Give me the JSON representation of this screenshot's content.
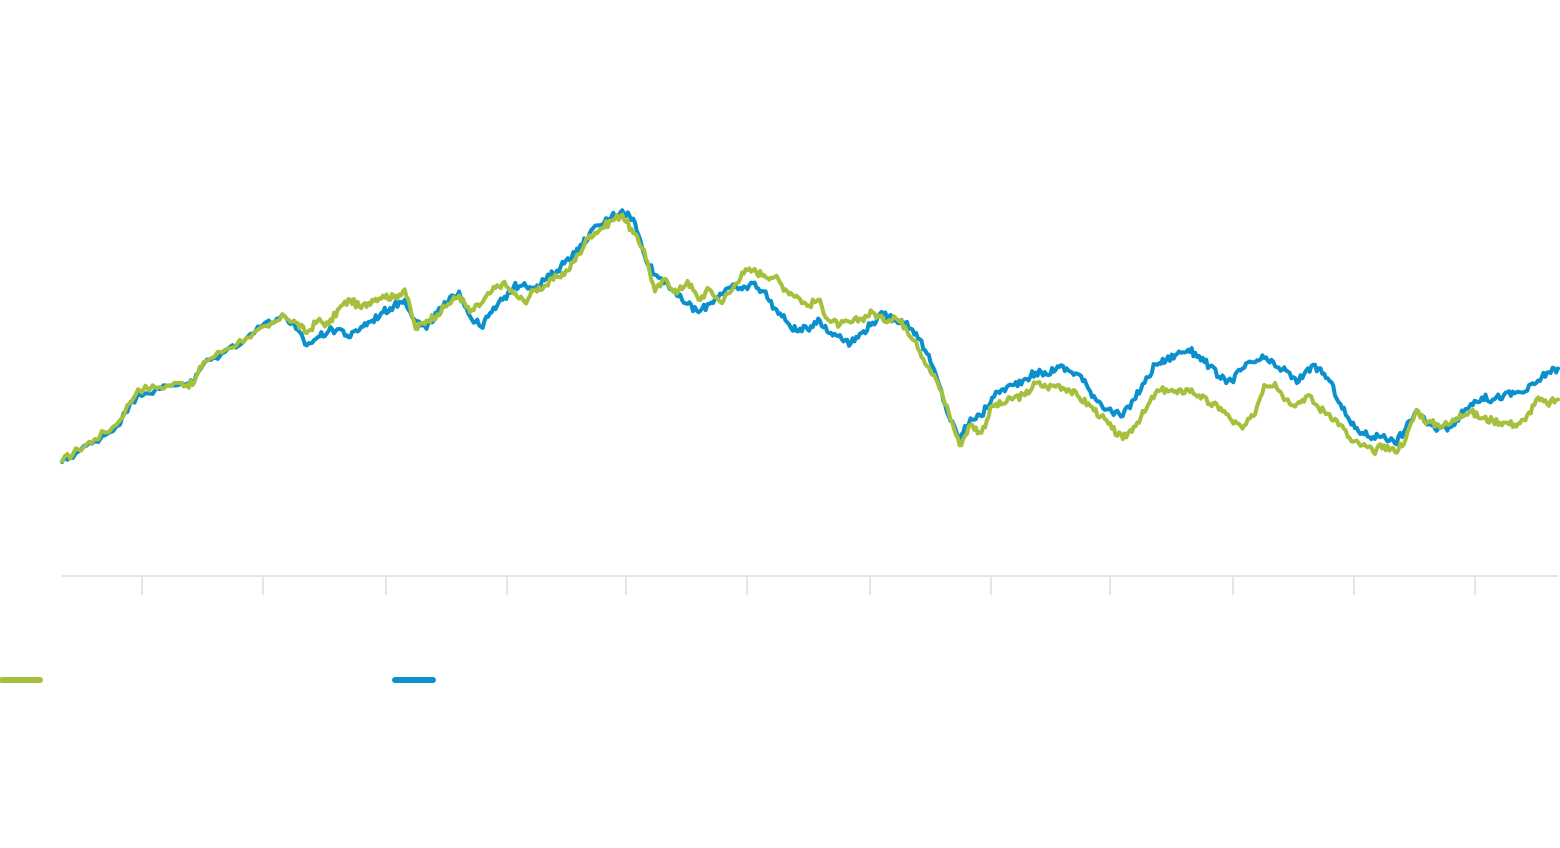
{
  "chart_data": {
    "type": "line",
    "title": "",
    "xlabel": "",
    "ylabel": "",
    "grid": false,
    "x_tick_count": 12,
    "ylim": [
      0,
      100
    ],
    "legend": {
      "placement": "bottom-left",
      "show_labels": false
    },
    "series": [
      {
        "color": "#a4c03d",
        "values": [
          [
            0,
            25.2
          ],
          [
            1.5,
            28.0
          ],
          [
            3,
            30.5
          ],
          [
            5,
            34.0
          ],
          [
            7,
            42.5
          ],
          [
            9,
            43.0
          ],
          [
            11,
            44.0
          ],
          [
            12,
            43.5
          ],
          [
            13,
            49.0
          ],
          [
            15,
            52.0
          ],
          [
            17,
            55.0
          ],
          [
            19,
            57.5
          ],
          [
            20.5,
            60.0
          ],
          [
            21.5,
            58.5
          ],
          [
            22.5,
            56.0
          ],
          [
            23.5,
            59.0
          ],
          [
            24.5,
            58.0
          ],
          [
            25.5,
            62.0
          ],
          [
            26.5,
            64.0
          ],
          [
            27.5,
            62.0
          ],
          [
            28.5,
            64.0
          ],
          [
            29.5,
            65.0
          ],
          [
            30.5,
            64.5
          ],
          [
            31.5,
            66.5
          ],
          [
            32.5,
            57.0
          ],
          [
            33.5,
            59.0
          ],
          [
            34.5,
            60.5
          ],
          [
            35.5,
            63.0
          ],
          [
            36.5,
            65.0
          ],
          [
            37.5,
            61.0
          ],
          [
            38.5,
            63.0
          ],
          [
            39.5,
            66.0
          ],
          [
            40.5,
            68.0
          ],
          [
            41.5,
            65.5
          ],
          [
            42.5,
            63.5
          ],
          [
            43.5,
            66.5
          ],
          [
            44.5,
            67.5
          ],
          [
            45.5,
            69.5
          ],
          [
            46.5,
            71.0
          ],
          [
            47.5,
            75.0
          ],
          [
            48.5,
            79.5
          ],
          [
            49.5,
            81.0
          ],
          [
            50.5,
            83.0
          ],
          [
            51.5,
            84.5
          ],
          [
            52.5,
            80.0
          ],
          [
            53.5,
            76.0
          ],
          [
            54.5,
            66.0
          ],
          [
            55.5,
            69.0
          ],
          [
            56.5,
            65.5
          ],
          [
            57.5,
            68.5
          ],
          [
            58.5,
            64.0
          ],
          [
            59.5,
            66.5
          ],
          [
            60.5,
            63.5
          ],
          [
            61.5,
            66.0
          ],
          [
            62.5,
            70.5
          ],
          [
            63.5,
            71.0
          ],
          [
            64.5,
            70.0
          ],
          [
            65.5,
            69.5
          ],
          [
            66.5,
            66.5
          ],
          [
            67.5,
            65.0
          ],
          [
            68.5,
            62.5
          ],
          [
            69.5,
            64.0
          ],
          [
            70.5,
            59.0
          ],
          [
            71.5,
            58.0
          ],
          [
            72.5,
            58.5
          ],
          [
            73.5,
            59.5
          ],
          [
            74.5,
            61.0
          ],
          [
            75.5,
            59.0
          ],
          [
            76.5,
            60.0
          ],
          [
            77.5,
            57.5
          ],
          [
            78.5,
            54.0
          ],
          [
            79.5,
            48.0
          ],
          [
            80.5,
            44.0
          ],
          [
            81.5,
            37.0
          ],
          [
            82.5,
            29.0
          ],
          [
            83.5,
            34.0
          ],
          [
            84.5,
            32.0
          ],
          [
            85.5,
            38.5
          ],
          [
            86.5,
            39.0
          ],
          [
            87.5,
            40.5
          ],
          [
            88.5,
            41.0
          ],
          [
            89.5,
            44.0
          ],
          [
            90.5,
            43.0
          ],
          [
            91.5,
            43.5
          ],
          [
            92.5,
            42.5
          ],
          [
            93.5,
            40.5
          ],
          [
            94.5,
            38.5
          ],
          [
            95.5,
            36.0
          ],
          [
            96.5,
            33.0
          ],
          [
            97.5,
            30.5
          ],
          [
            98.5,
            33.5
          ],
          [
            99.5,
            37.0
          ],
          [
            100.5,
            41.5
          ],
          [
            101.5,
            42.5
          ],
          [
            102.5,
            41.5
          ],
          [
            103.5,
            42.5
          ],
          [
            104.5,
            41.0
          ],
          [
            105.5,
            39.0
          ],
          [
            106.5,
            38.0
          ],
          [
            107.5,
            35.0
          ],
          [
            108.5,
            33.0
          ],
          [
            109.5,
            36.0
          ],
          [
            110.5,
            43.5
          ],
          [
            111.5,
            44.0
          ],
          [
            112.5,
            40.0
          ],
          [
            113.5,
            39.0
          ],
          [
            114.5,
            41.0
          ],
          [
            115.5,
            38.0
          ],
          [
            116.5,
            36.5
          ],
          [
            117.5,
            34.0
          ],
          [
            118.5,
            30.0
          ],
          [
            119.5,
            29.0
          ],
          [
            120.5,
            27.5
          ],
          [
            121.5,
            29.0
          ],
          [
            122.5,
            27.5
          ],
          [
            123.5,
            30.5
          ],
          [
            124.5,
            37.5
          ],
          [
            125.5,
            34.5
          ],
          [
            126.5,
            34.0
          ],
          [
            127.5,
            34.0
          ],
          [
            128.5,
            36.5
          ],
          [
            129.5,
            37.0
          ],
          [
            130.5,
            35.5
          ],
          [
            131.5,
            35.0
          ],
          [
            132.5,
            34.5
          ],
          [
            133.5,
            34.0
          ],
          [
            134.5,
            35.0
          ],
          [
            135.5,
            40.0
          ],
          [
            136.5,
            39.0
          ],
          [
            137.5,
            40.0
          ]
        ]
      },
      {
        "color": "#0a90cc",
        "values": [
          [
            0,
            25.0
          ],
          [
            1.5,
            27.5
          ],
          [
            3,
            30.0
          ],
          [
            5,
            33.5
          ],
          [
            7,
            41.5
          ],
          [
            9,
            42.5
          ],
          [
            11,
            44.0
          ],
          [
            12,
            44.0
          ],
          [
            13,
            48.5
          ],
          [
            15,
            51.5
          ],
          [
            17,
            55.0
          ],
          [
            19,
            59.0
          ],
          [
            20.5,
            60.0
          ],
          [
            21.5,
            57.0
          ],
          [
            22.5,
            53.0
          ],
          [
            23.5,
            55.0
          ],
          [
            24.5,
            56.5
          ],
          [
            25.5,
            57.0
          ],
          [
            26.5,
            55.0
          ],
          [
            27.5,
            57.5
          ],
          [
            28.5,
            59.0
          ],
          [
            29.5,
            61.0
          ],
          [
            30.5,
            62.5
          ],
          [
            31.5,
            64.0
          ],
          [
            32.5,
            59.0
          ],
          [
            33.5,
            57.0
          ],
          [
            34.5,
            61.0
          ],
          [
            35.5,
            63.5
          ],
          [
            36.5,
            66.0
          ],
          [
            37.5,
            60.0
          ],
          [
            38.5,
            57.5
          ],
          [
            39.5,
            61.0
          ],
          [
            40.5,
            64.0
          ],
          [
            41.5,
            67.0
          ],
          [
            42.5,
            68.0
          ],
          [
            43.5,
            66.5
          ],
          [
            44.5,
            69.0
          ],
          [
            45.5,
            71.0
          ],
          [
            46.5,
            74.0
          ],
          [
            47.5,
            76.0
          ],
          [
            48.5,
            80.0
          ],
          [
            49.5,
            82.0
          ],
          [
            50.5,
            84.0
          ],
          [
            51.5,
            85.5
          ],
          [
            52.5,
            83.5
          ],
          [
            53.5,
            75.0
          ],
          [
            54.5,
            70.0
          ],
          [
            55.5,
            68.5
          ],
          [
            56.5,
            65.0
          ],
          [
            57.5,
            63.0
          ],
          [
            58.5,
            61.0
          ],
          [
            59.5,
            63.0
          ],
          [
            60.5,
            65.5
          ],
          [
            61.5,
            67.0
          ],
          [
            62.5,
            66.5
          ],
          [
            63.5,
            68.0
          ],
          [
            64.5,
            66.0
          ],
          [
            65.5,
            62.0
          ],
          [
            66.5,
            59.0
          ],
          [
            67.5,
            56.5
          ],
          [
            68.5,
            57.0
          ],
          [
            69.5,
            59.5
          ],
          [
            70.5,
            56.0
          ],
          [
            71.5,
            55.5
          ],
          [
            72.5,
            53.5
          ],
          [
            73.5,
            56.0
          ],
          [
            74.5,
            58.5
          ],
          [
            75.5,
            60.5
          ],
          [
            76.5,
            59.5
          ],
          [
            77.5,
            58.5
          ],
          [
            78.5,
            56.0
          ],
          [
            79.5,
            51.0
          ],
          [
            80.5,
            44.5
          ],
          [
            81.5,
            36.0
          ],
          [
            82.5,
            30.5
          ],
          [
            83.5,
            35.5
          ],
          [
            84.5,
            36.0
          ],
          [
            85.5,
            40.5
          ],
          [
            86.5,
            42.5
          ],
          [
            87.5,
            43.5
          ],
          [
            88.5,
            45.0
          ],
          [
            89.5,
            46.5
          ],
          [
            90.5,
            46.0
          ],
          [
            91.5,
            48.0
          ],
          [
            92.5,
            47.0
          ],
          [
            93.5,
            46.0
          ],
          [
            94.5,
            42.0
          ],
          [
            95.5,
            39.0
          ],
          [
            96.5,
            37.0
          ],
          [
            97.5,
            36.0
          ],
          [
            98.5,
            40.0
          ],
          [
            99.5,
            44.0
          ],
          [
            100.5,
            48.5
          ],
          [
            101.5,
            49.5
          ],
          [
            102.5,
            51.0
          ],
          [
            103.5,
            52.0
          ],
          [
            104.5,
            50.5
          ],
          [
            105.5,
            48.0
          ],
          [
            106.5,
            45.0
          ],
          [
            107.5,
            44.5
          ],
          [
            108.5,
            47.5
          ],
          [
            109.5,
            49.0
          ],
          [
            110.5,
            50.0
          ],
          [
            111.5,
            48.0
          ],
          [
            112.5,
            47.0
          ],
          [
            113.5,
            44.0
          ],
          [
            114.5,
            47.5
          ],
          [
            115.5,
            47.5
          ],
          [
            116.5,
            44.5
          ],
          [
            117.5,
            39.0
          ],
          [
            118.5,
            34.0
          ],
          [
            119.5,
            32.0
          ],
          [
            120.5,
            31.0
          ],
          [
            121.5,
            31.5
          ],
          [
            122.5,
            29.5
          ],
          [
            123.5,
            33.0
          ],
          [
            124.5,
            37.5
          ],
          [
            125.5,
            34.0
          ],
          [
            126.5,
            33.0
          ],
          [
            127.5,
            33.5
          ],
          [
            128.5,
            36.0
          ],
          [
            129.5,
            39.0
          ],
          [
            130.5,
            40.5
          ],
          [
            131.5,
            40.0
          ],
          [
            132.5,
            41.0
          ],
          [
            133.5,
            41.5
          ],
          [
            134.5,
            42.0
          ],
          [
            135.5,
            44.0
          ],
          [
            136.5,
            46.5
          ],
          [
            137.5,
            47.5
          ]
        ]
      }
    ]
  }
}
